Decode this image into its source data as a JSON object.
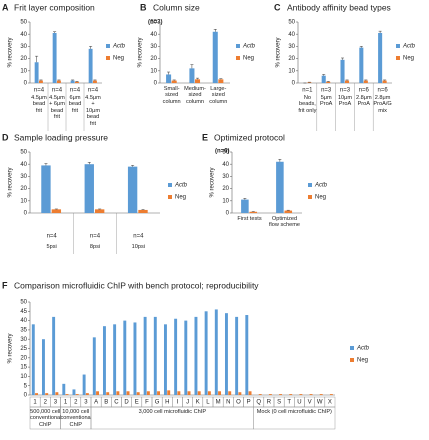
{
  "chart_data": [
    {
      "type": "bar",
      "panel": "A",
      "title": "Frit layer composition",
      "ylabel": "% recovery",
      "categories": [
        "4.5μm bead frit",
        "4.5μm + 6μm bead frit",
        "6μm bead frit",
        "4.5μm + 10μm bead frit"
      ],
      "n_labels": [
        "n=4",
        "n=4",
        "n=4",
        "n=4"
      ],
      "series": [
        {
          "name": "Actb",
          "color": "#5b9bd5",
          "values": [
            17,
            41,
            2,
            28
          ],
          "errors": [
            5,
            1,
            0.5,
            2
          ]
        },
        {
          "name": "Neg",
          "color": "#ed7d31",
          "values": [
            2,
            2,
            1,
            2
          ],
          "errors": [
            0.5,
            0.5,
            0.3,
            0.5
          ]
        }
      ],
      "ylim": [
        0,
        50
      ],
      "yticks": [
        0,
        10,
        20,
        30,
        40,
        50
      ]
    },
    {
      "type": "bar",
      "panel": "B",
      "title": "Column size",
      "ylabel": "% recovery",
      "annotation": "(n=3)",
      "categories": [
        "Small-sized column",
        "Medium-sized column",
        "Large-sized column"
      ],
      "series": [
        {
          "name": "Actb",
          "color": "#5b9bd5",
          "values": [
            7,
            12,
            42
          ],
          "errors": [
            2,
            3,
            2
          ]
        },
        {
          "name": "Neg",
          "color": "#ed7d31",
          "values": [
            2,
            3,
            3
          ],
          "errors": [
            0.5,
            1,
            0.5
          ]
        }
      ],
      "ylim": [
        0,
        50
      ],
      "yticks": [
        0,
        10,
        20,
        30,
        40,
        50
      ]
    },
    {
      "type": "bar",
      "panel": "C",
      "title": "Antibody affinity bead types",
      "ylabel": "% recovery",
      "categories": [
        "No beads, frit only",
        "5μm ProA",
        "10μm ProA",
        "2.8μm ProA",
        "2.8μm ProA/G mix"
      ],
      "n_labels": [
        "n=1",
        "n=3",
        "n=3",
        "n=6",
        "n=6"
      ],
      "series": [
        {
          "name": "Actb",
          "color": "#5b9bd5",
          "values": [
            0,
            6,
            19,
            29,
            41
          ],
          "errors": [
            0,
            1,
            1.5,
            1,
            1.5
          ]
        },
        {
          "name": "Neg",
          "color": "#ed7d31",
          "values": [
            0.5,
            1,
            2,
            2,
            2
          ],
          "errors": [
            0.2,
            0.3,
            0.5,
            0.5,
            0.5
          ]
        }
      ],
      "ylim": [
        0,
        50
      ],
      "yticks": [
        0,
        10,
        20,
        30,
        40,
        50
      ]
    },
    {
      "type": "bar",
      "panel": "D",
      "title": "Sample loading pressure",
      "ylabel": "% recovery",
      "categories": [
        "5psi",
        "8psi",
        "10psi"
      ],
      "n_labels": [
        "n=4",
        "n=4",
        "n=4"
      ],
      "series": [
        {
          "name": "Actb",
          "color": "#5b9bd5",
          "values": [
            39,
            40,
            38
          ],
          "errors": [
            1.5,
            1.5,
            1
          ]
        },
        {
          "name": "Neg",
          "color": "#ed7d31",
          "values": [
            3,
            3,
            2.5
          ],
          "errors": [
            0.3,
            0.3,
            0.3
          ]
        }
      ],
      "ylim": [
        0,
        50
      ],
      "yticks": [
        0,
        10,
        20,
        30,
        40,
        50
      ]
    },
    {
      "type": "bar",
      "panel": "E",
      "title": "Optimized protocol",
      "ylabel": "% recovery",
      "annotation": "(n=6)",
      "categories": [
        "First tests",
        "Optimized flow scheme"
      ],
      "series": [
        {
          "name": "Actb",
          "color": "#5b9bd5",
          "values": [
            11,
            42
          ],
          "errors": [
            1,
            2
          ]
        },
        {
          "name": "Neg",
          "color": "#ed7d31",
          "values": [
            1,
            2
          ],
          "errors": [
            0.2,
            0.3
          ]
        }
      ],
      "ylim": [
        0,
        50
      ],
      "yticks": [
        0,
        10,
        20,
        30,
        40,
        50
      ]
    },
    {
      "type": "bar",
      "panel": "F",
      "title": "Comparison microfluidic ChIP with bench protocol; reproducibility",
      "ylabel": "% recovery",
      "categories": [
        "1",
        "2",
        "3",
        "1",
        "2",
        "3",
        "A",
        "B",
        "C",
        "D",
        "E",
        "F",
        "G",
        "H",
        "I",
        "J",
        "K",
        "L",
        "M",
        "N",
        "O",
        "P",
        "Q",
        "R",
        "S",
        "T",
        "U",
        "V",
        "W",
        "X"
      ],
      "groups": [
        "500,000 cell conventional ChIP",
        "10,000 cell conventional ChIP",
        "3,000 cell microfluidic ChIP",
        "Mock (0 cell microfluidic ChIP)"
      ],
      "series": [
        {
          "name": "Actb",
          "color": "#5b9bd5",
          "values": [
            38,
            30,
            42,
            6,
            3,
            11,
            31,
            37,
            38,
            40,
            39,
            42,
            42,
            38,
            41,
            40,
            42,
            45,
            46,
            44,
            42,
            43,
            0,
            0,
            0,
            0,
            0,
            0,
            0,
            0
          ]
        },
        {
          "name": "Neg",
          "color": "#ed7d31",
          "values": [
            1,
            1,
            1.5,
            0.5,
            0.5,
            1,
            2,
            1.5,
            2,
            2,
            1.5,
            2,
            2,
            2.5,
            2,
            2,
            2,
            2,
            2,
            2,
            1.5,
            2,
            0.5,
            0.5,
            0.5,
            0.5,
            0.5,
            0.5,
            0.5,
            0.5
          ]
        }
      ],
      "ylim": [
        0,
        50
      ],
      "yticks": [
        0,
        5,
        10,
        15,
        20,
        25,
        30,
        35,
        40,
        45,
        50
      ]
    }
  ]
}
